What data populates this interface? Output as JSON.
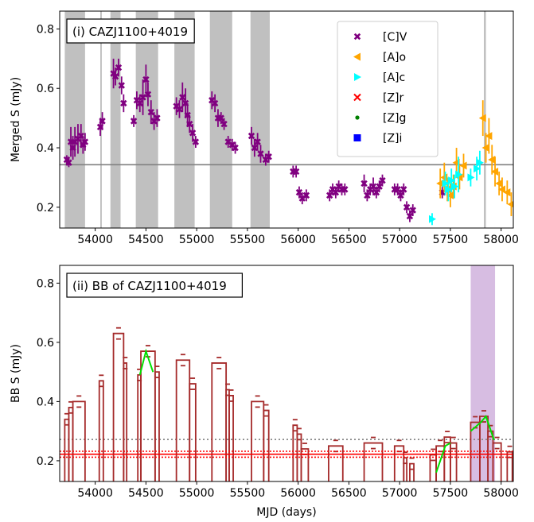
{
  "chart_data": [
    {
      "type": "scatter",
      "panel_label": "(i) CAZJ1100+4019",
      "xlabel": "",
      "ylabel": "Merged S (mJy)",
      "xlim": [
        53650,
        58120
      ],
      "ylim": [
        0.13,
        0.86
      ],
      "x_ticks": [
        54000,
        54500,
        55000,
        55500,
        56000,
        56500,
        57000,
        57500,
        58000
      ],
      "y_ticks": [
        0.2,
        0.4,
        0.6,
        0.8
      ],
      "hline": 0.343,
      "hline_color": "#808080",
      "shaded_x_ranges": [
        [
          53700,
          53900
        ],
        [
          54050,
          54065
        ],
        [
          54150,
          54250
        ],
        [
          54400,
          54620
        ],
        [
          54780,
          54980
        ],
        [
          55130,
          55350
        ],
        [
          55530,
          55720
        ],
        [
          57830,
          57850
        ]
      ],
      "shade_color": "#c0c0c0",
      "legend_position": "upper-right",
      "series": [
        {
          "name": "[C]V",
          "marker": "X",
          "color": "#800080",
          "x": [
            53720,
            53740,
            53760,
            53780,
            53800,
            53830,
            53860,
            53880,
            53900,
            54050,
            54070,
            54180,
            54200,
            54230,
            54260,
            54280,
            54380,
            54410,
            54440,
            54470,
            54500,
            54520,
            54550,
            54580,
            54610,
            54800,
            54830,
            54860,
            54890,
            54910,
            54930,
            54960,
            54990,
            55150,
            55180,
            55210,
            55240,
            55270,
            55310,
            55350,
            55380,
            55540,
            55570,
            55600,
            55630,
            55680,
            55710,
            55950,
            55980,
            56010,
            56040,
            56080,
            56310,
            56340,
            56370,
            56400,
            56430,
            56460,
            56650,
            56680,
            56710,
            56740,
            56770,
            56800,
            56830,
            56950,
            56980,
            57010,
            57040,
            57070,
            57100,
            57130,
            57420
          ],
          "y": [
            0.36,
            0.35,
            0.42,
            0.4,
            0.42,
            0.43,
            0.44,
            0.41,
            0.42,
            0.47,
            0.49,
            0.65,
            0.64,
            0.67,
            0.61,
            0.55,
            0.49,
            0.56,
            0.55,
            0.57,
            0.63,
            0.58,
            0.52,
            0.49,
            0.5,
            0.54,
            0.53,
            0.57,
            0.55,
            0.51,
            0.48,
            0.45,
            0.42,
            0.56,
            0.55,
            0.5,
            0.5,
            0.48,
            0.42,
            0.41,
            0.4,
            0.44,
            0.4,
            0.42,
            0.38,
            0.36,
            0.37,
            0.32,
            0.32,
            0.25,
            0.23,
            0.24,
            0.24,
            0.26,
            0.25,
            0.27,
            0.26,
            0.26,
            0.28,
            0.24,
            0.26,
            0.27,
            0.25,
            0.27,
            0.29,
            0.26,
            0.26,
            0.24,
            0.26,
            0.2,
            0.17,
            0.19,
            0.25
          ],
          "err": [
            0.015,
            0.015,
            0.05,
            0.04,
            0.05,
            0.05,
            0.04,
            0.03,
            0.03,
            0.03,
            0.03,
            0.05,
            0.03,
            0.03,
            0.03,
            0.03,
            0.02,
            0.03,
            0.03,
            0.06,
            0.05,
            0.04,
            0.04,
            0.03,
            0.03,
            0.03,
            0.03,
            0.05,
            0.05,
            0.04,
            0.03,
            0.03,
            0.02,
            0.03,
            0.03,
            0.03,
            0.02,
            0.02,
            0.02,
            0.02,
            0.02,
            0.03,
            0.03,
            0.03,
            0.03,
            0.02,
            0.02,
            0.02,
            0.02,
            0.02,
            0.02,
            0.02,
            0.02,
            0.02,
            0.02,
            0.02,
            0.02,
            0.02,
            0.03,
            0.02,
            0.02,
            0.03,
            0.02,
            0.02,
            0.02,
            0.02,
            0.02,
            0.02,
            0.02,
            0.02,
            0.02,
            0.02,
            0.02
          ]
        },
        {
          "name": "[A]o",
          "marker": "triangle-left",
          "color": "#ffa500",
          "x": [
            57400,
            57440,
            57470,
            57500,
            57530,
            57560,
            57590,
            57630,
            57820,
            57850,
            57880,
            57910,
            57940,
            57980,
            58010,
            58060,
            58100
          ],
          "y": [
            0.28,
            0.3,
            0.26,
            0.24,
            0.27,
            0.35,
            0.3,
            0.34,
            0.5,
            0.4,
            0.44,
            0.36,
            0.32,
            0.28,
            0.26,
            0.25,
            0.21
          ],
          "err": [
            0.05,
            0.05,
            0.04,
            0.04,
            0.04,
            0.05,
            0.04,
            0.04,
            0.06,
            0.05,
            0.06,
            0.05,
            0.05,
            0.04,
            0.04,
            0.04,
            0.04
          ]
        },
        {
          "name": "[A]c",
          "marker": "triangle-right",
          "color": "#00ffff",
          "x": [
            57320,
            57450,
            57480,
            57510,
            57540,
            57580,
            57700,
            57760,
            57790
          ],
          "y": [
            0.16,
            0.28,
            0.26,
            0.29,
            0.27,
            0.31,
            0.3,
            0.33,
            0.35
          ],
          "err": [
            0.02,
            0.04,
            0.04,
            0.04,
            0.04,
            0.06,
            0.03,
            0.04,
            0.04
          ]
        },
        {
          "name": "[Z]r",
          "marker": "x",
          "color": "#ff0000",
          "x": [],
          "y": []
        },
        {
          "name": "[Z]g",
          "marker": "dot",
          "color": "#008000",
          "x": [],
          "y": []
        },
        {
          "name": "[Z]i",
          "marker": "square",
          "color": "#0000ff",
          "x": [],
          "y": []
        }
      ]
    },
    {
      "type": "step",
      "panel_label": "(ii) BB of CAZJ1100+4019",
      "xlabel": "MJD (days)",
      "ylabel": "BB S (mJy)",
      "xlim": [
        53650,
        58120
      ],
      "ylim": [
        0.13,
        0.86
      ],
      "x_ticks": [
        54000,
        54500,
        55000,
        55500,
        56000,
        56500,
        57000,
        57500,
        58000
      ],
      "y_ticks": [
        0.2,
        0.4,
        0.6,
        0.8
      ],
      "mean_line": 0.222,
      "mean_band": [
        0.212,
        0.232
      ],
      "threshold_line": 0.272,
      "shaded_x_range": [
        57700,
        57940
      ],
      "shade_color": "#d7bde2",
      "blocks": [
        {
          "x0": 53700,
          "x1": 53740,
          "y": 0.34
        },
        {
          "x0": 53740,
          "x1": 53780,
          "y": 0.38
        },
        {
          "x0": 53780,
          "x1": 53900,
          "y": 0.4
        },
        {
          "x0": 54040,
          "x1": 54080,
          "y": 0.47
        },
        {
          "x0": 54180,
          "x1": 54280,
          "y": 0.63
        },
        {
          "x0": 54280,
          "x1": 54310,
          "y": 0.53
        },
        {
          "x0": 54420,
          "x1": 54450,
          "y": 0.49
        },
        {
          "x0": 54450,
          "x1": 54590,
          "y": 0.57
        },
        {
          "x0": 54590,
          "x1": 54630,
          "y": 0.5
        },
        {
          "x0": 54800,
          "x1": 54930,
          "y": 0.54
        },
        {
          "x0": 54930,
          "x1": 54990,
          "y": 0.46
        },
        {
          "x0": 55150,
          "x1": 55290,
          "y": 0.53
        },
        {
          "x0": 55290,
          "x1": 55320,
          "y": 0.44
        },
        {
          "x0": 55320,
          "x1": 55360,
          "y": 0.42
        },
        {
          "x0": 55540,
          "x1": 55660,
          "y": 0.4
        },
        {
          "x0": 55660,
          "x1": 55710,
          "y": 0.37
        },
        {
          "x0": 55950,
          "x1": 55990,
          "y": 0.32
        },
        {
          "x0": 55990,
          "x1": 56030,
          "y": 0.29
        },
        {
          "x0": 56030,
          "x1": 56100,
          "y": 0.24
        },
        {
          "x0": 56300,
          "x1": 56440,
          "y": 0.25
        },
        {
          "x0": 56650,
          "x1": 56830,
          "y": 0.26
        },
        {
          "x0": 56950,
          "x1": 57040,
          "y": 0.25
        },
        {
          "x0": 57040,
          "x1": 57070,
          "y": 0.21
        },
        {
          "x0": 57100,
          "x1": 57140,
          "y": 0.19
        },
        {
          "x0": 57300,
          "x1": 57360,
          "y": 0.22
        },
        {
          "x0": 57360,
          "x1": 57440,
          "y": 0.25
        },
        {
          "x0": 57440,
          "x1": 57500,
          "y": 0.28
        },
        {
          "x0": 57500,
          "x1": 57560,
          "y": 0.26
        },
        {
          "x0": 57700,
          "x1": 57790,
          "y": 0.33
        },
        {
          "x0": 57790,
          "x1": 57870,
          "y": 0.35
        },
        {
          "x0": 57870,
          "x1": 57920,
          "y": 0.3
        },
        {
          "x0": 57920,
          "x1": 58000,
          "y": 0.26
        },
        {
          "x0": 58060,
          "x1": 58110,
          "y": 0.23
        }
      ],
      "flare_curves": [
        {
          "x": [
            54440,
            54500,
            54570
          ],
          "y": [
            0.49,
            0.57,
            0.5
          ]
        },
        {
          "x": [
            57360,
            57450,
            57500
          ],
          "y": [
            0.16,
            0.25,
            0.26
          ]
        },
        {
          "x": [
            57700,
            57800,
            57850,
            57930
          ],
          "y": [
            0.3,
            0.33,
            0.35,
            0.27
          ]
        }
      ],
      "flare_color": "#00e000",
      "block_color": "#a52a2a"
    }
  ]
}
